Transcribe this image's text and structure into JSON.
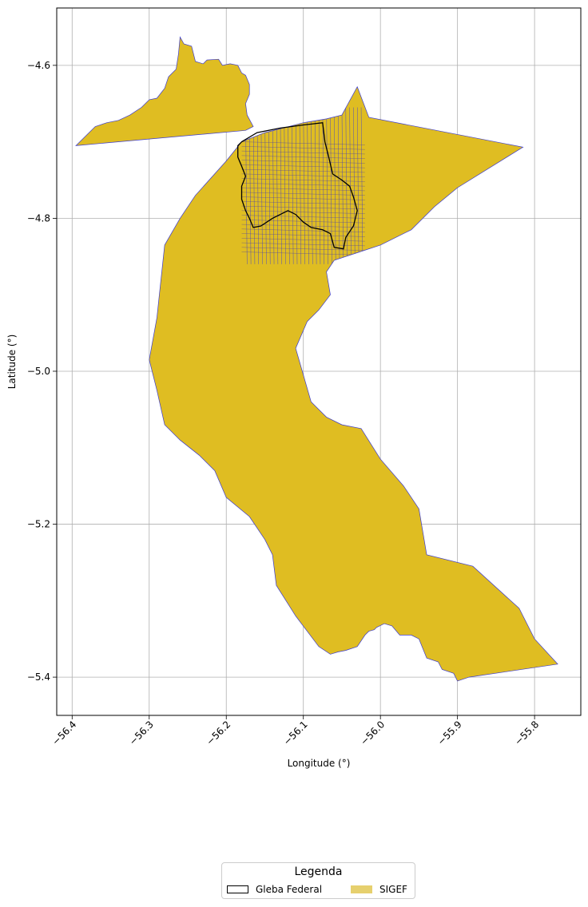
{
  "chart_data": {
    "type": "map",
    "xlabel": "Longitude (°)",
    "ylabel": "Latitude (°)",
    "xlim": [
      -56.42,
      -55.74
    ],
    "ylim": [
      -5.45,
      -4.525
    ],
    "xticks": [
      -56.4,
      -56.3,
      -56.2,
      -56.1,
      -56.0,
      -55.9,
      -55.8
    ],
    "xtick_labels": [
      "−56.4",
      "−56.3",
      "−56.2",
      "−56.1",
      "−56.0",
      "−55.9",
      "−55.8"
    ],
    "yticks": [
      -4.6,
      -4.8,
      -5.0,
      -5.2,
      -5.4
    ],
    "ytick_labels": [
      "−4.6",
      "−4.8",
      "−5.0",
      "−5.2",
      "−5.4"
    ],
    "grid": true,
    "colors": {
      "sigef_fill": "#dfbd22",
      "sigef_edge": "#3b3bd0",
      "gleba_edge": "#000000",
      "grid": "#b0b0b0"
    },
    "layers": [
      {
        "name": "SIGEF",
        "kind": "polygon",
        "polygons": [
          [
            [
              -56.395,
              -4.705
            ],
            [
              -56.38,
              -4.69
            ],
            [
              -56.37,
              -4.68
            ],
            [
              -56.355,
              -4.675
            ],
            [
              -56.34,
              -4.672
            ],
            [
              -56.325,
              -4.665
            ],
            [
              -56.31,
              -4.655
            ],
            [
              -56.3,
              -4.645
            ],
            [
              -56.29,
              -4.643
            ],
            [
              -56.28,
              -4.63
            ],
            [
              -56.275,
              -4.615
            ],
            [
              -56.265,
              -4.605
            ],
            [
              -56.262,
              -4.585
            ],
            [
              -56.26,
              -4.563
            ],
            [
              -56.255,
              -4.572
            ],
            [
              -56.245,
              -4.575
            ],
            [
              -56.24,
              -4.595
            ],
            [
              -56.23,
              -4.598
            ],
            [
              -56.225,
              -4.593
            ],
            [
              -56.21,
              -4.592
            ],
            [
              -56.205,
              -4.6
            ],
            [
              -56.195,
              -4.598
            ],
            [
              -56.185,
              -4.6
            ],
            [
              -56.18,
              -4.61
            ],
            [
              -56.175,
              -4.613
            ],
            [
              -56.17,
              -4.625
            ],
            [
              -56.17,
              -4.638
            ],
            [
              -56.175,
              -4.65
            ],
            [
              -56.173,
              -4.665
            ],
            [
              -56.165,
              -4.68
            ],
            [
              -56.175,
              -4.685
            ],
            [
              -56.395,
              -4.705
            ]
          ],
          [
            [
              -56.2,
              -4.725
            ],
            [
              -56.18,
              -4.7
            ],
            [
              -56.15,
              -4.688
            ],
            [
              -56.13,
              -4.683
            ],
            [
              -56.1,
              -4.675
            ],
            [
              -56.07,
              -4.67
            ],
            [
              -56.05,
              -4.665
            ],
            [
              -56.03,
              -4.628
            ],
            [
              -56.015,
              -4.668
            ],
            [
              -55.815,
              -4.707
            ],
            [
              -55.9,
              -4.76
            ],
            [
              -55.93,
              -4.785
            ],
            [
              -55.96,
              -4.815
            ],
            [
              -56.0,
              -4.835
            ],
            [
              -56.03,
              -4.845
            ],
            [
              -56.06,
              -4.855
            ],
            [
              -56.07,
              -4.87
            ],
            [
              -56.065,
              -4.9
            ],
            [
              -56.08,
              -4.92
            ],
            [
              -56.095,
              -4.935
            ],
            [
              -56.11,
              -4.97
            ],
            [
              -56.09,
              -5.04
            ],
            [
              -56.07,
              -5.06
            ],
            [
              -56.05,
              -5.07
            ],
            [
              -56.025,
              -5.075
            ],
            [
              -56.0,
              -5.115
            ],
            [
              -55.97,
              -5.15
            ],
            [
              -55.95,
              -5.18
            ],
            [
              -55.94,
              -5.24
            ],
            [
              -55.88,
              -5.255
            ],
            [
              -55.82,
              -5.31
            ],
            [
              -55.8,
              -5.35
            ],
            [
              -55.77,
              -5.383
            ],
            [
              -55.885,
              -5.4
            ],
            [
              -55.9,
              -5.405
            ],
            [
              -55.905,
              -5.395
            ],
            [
              -55.92,
              -5.39
            ],
            [
              -55.925,
              -5.38
            ],
            [
              -55.94,
              -5.375
            ],
            [
              -55.95,
              -5.35
            ],
            [
              -55.96,
              -5.345
            ],
            [
              -55.975,
              -5.345
            ],
            [
              -55.985,
              -5.333
            ],
            [
              -55.995,
              -5.33
            ],
            [
              -56.005,
              -5.335
            ],
            [
              -56.008,
              -5.338
            ],
            [
              -56.015,
              -5.34
            ],
            [
              -56.02,
              -5.345
            ],
            [
              -56.03,
              -5.36
            ],
            [
              -56.045,
              -5.365
            ],
            [
              -56.055,
              -5.367
            ],
            [
              -56.065,
              -5.37
            ],
            [
              -56.08,
              -5.36
            ],
            [
              -56.095,
              -5.34
            ],
            [
              -56.11,
              -5.32
            ],
            [
              -56.135,
              -5.28
            ],
            [
              -56.14,
              -5.24
            ],
            [
              -56.15,
              -5.22
            ],
            [
              -56.17,
              -5.19
            ],
            [
              -56.2,
              -5.165
            ],
            [
              -56.215,
              -5.13
            ],
            [
              -56.235,
              -5.11
            ],
            [
              -56.26,
              -5.09
            ],
            [
              -56.28,
              -5.07
            ],
            [
              -56.29,
              -5.025
            ],
            [
              -56.3,
              -4.985
            ],
            [
              -56.29,
              -4.93
            ],
            [
              -56.28,
              -4.835
            ],
            [
              -56.26,
              -4.8
            ],
            [
              -56.24,
              -4.77
            ],
            [
              -56.2,
              -4.725
            ]
          ]
        ]
      },
      {
        "name": "Gleba Federal",
        "kind": "outline",
        "polygons": [
          [
            [
              -56.18,
              -4.7
            ],
            [
              -56.16,
              -4.688
            ],
            [
              -56.13,
              -4.682
            ],
            [
              -56.1,
              -4.678
            ],
            [
              -56.075,
              -4.675
            ],
            [
              -56.072,
              -4.7
            ],
            [
              -56.067,
              -4.72
            ],
            [
              -56.062,
              -4.742
            ],
            [
              -56.05,
              -4.75
            ],
            [
              -56.04,
              -4.758
            ],
            [
              -56.035,
              -4.772
            ],
            [
              -56.03,
              -4.79
            ],
            [
              -56.035,
              -4.81
            ],
            [
              -56.045,
              -4.825
            ],
            [
              -56.048,
              -4.84
            ],
            [
              -56.06,
              -4.838
            ],
            [
              -56.065,
              -4.82
            ],
            [
              -56.075,
              -4.815
            ],
            [
              -56.09,
              -4.812
            ],
            [
              -56.1,
              -4.805
            ],
            [
              -56.11,
              -4.795
            ],
            [
              -56.12,
              -4.79
            ],
            [
              -56.14,
              -4.8
            ],
            [
              -56.155,
              -4.81
            ],
            [
              -56.165,
              -4.812
            ],
            [
              -56.17,
              -4.8
            ],
            [
              -56.175,
              -4.79
            ],
            [
              -56.18,
              -4.775
            ],
            [
              -56.18,
              -4.758
            ],
            [
              -56.175,
              -4.745
            ],
            [
              -56.18,
              -4.732
            ],
            [
              -56.185,
              -4.72
            ],
            [
              -56.185,
              -4.705
            ],
            [
              -56.18,
              -4.7
            ]
          ]
        ]
      }
    ],
    "legend": {
      "title": "Legenda",
      "placement": "below",
      "entries": [
        {
          "label": "Gleba Federal",
          "style": "outline",
          "color": "#000000"
        },
        {
          "label": "SIGEF",
          "style": "fill",
          "color": "#e6d06e"
        }
      ]
    }
  }
}
